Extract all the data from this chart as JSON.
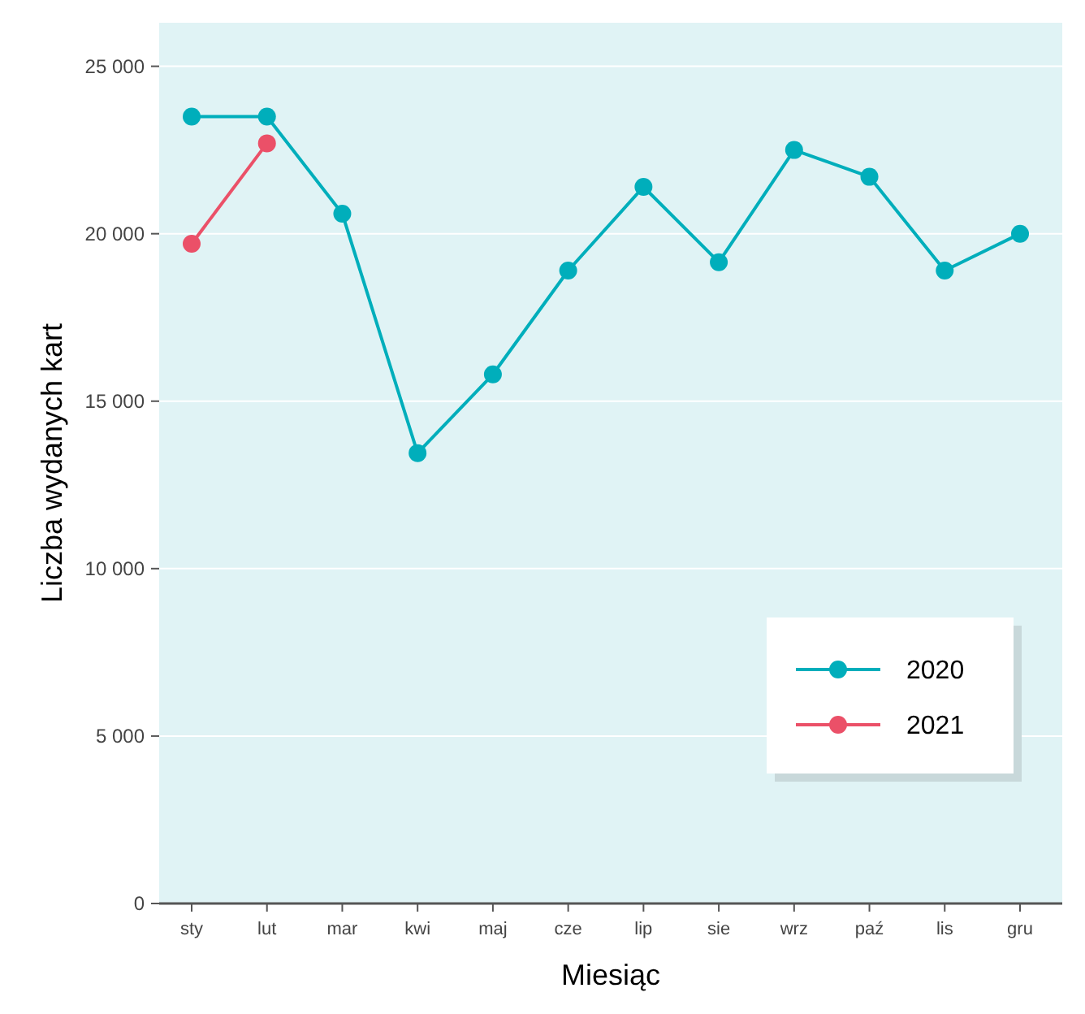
{
  "chart_data": {
    "type": "line",
    "xlabel": "Miesiąc",
    "ylabel": "Liczba wydanych kart",
    "categories": [
      "sty",
      "lut",
      "mar",
      "kwi",
      "maj",
      "cze",
      "lip",
      "sie",
      "wrz",
      "paź",
      "lis",
      "gru"
    ],
    "series": [
      {
        "name": "2020",
        "color": "#00aebb",
        "values": [
          23500,
          23500,
          20600,
          13450,
          15800,
          18900,
          21400,
          19150,
          22500,
          21700,
          18900,
          20000
        ]
      },
      {
        "name": "2021",
        "color": "#eb5068",
        "values": [
          19700,
          22700,
          null,
          null,
          null,
          null,
          null,
          null,
          null,
          null,
          null,
          null
        ]
      }
    ],
    "ylim": [
      0,
      26300
    ],
    "yticks": [
      {
        "value": 0,
        "label": "0"
      },
      {
        "value": 5000,
        "label": "5 000"
      },
      {
        "value": 10000,
        "label": "10 000"
      },
      {
        "value": 15000,
        "label": "15 000"
      },
      {
        "value": 20000,
        "label": "20 000"
      },
      {
        "value": 25000,
        "label": "25 000"
      }
    ],
    "grid": "y",
    "legend": "bottom right",
    "marker": "circle",
    "line_style": "solid"
  }
}
